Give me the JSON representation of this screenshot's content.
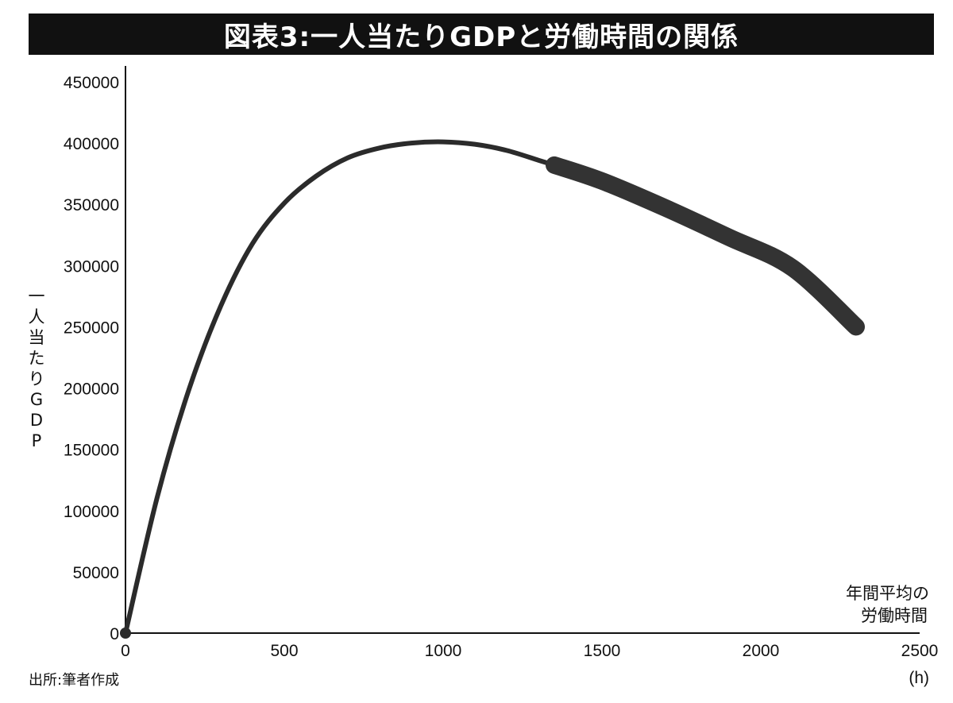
{
  "title": "図表3:一人当たりGDPと労働時間の関係",
  "source": "出所:筆者作成",
  "chart_data": {
    "type": "line",
    "title": "図表3:一人当たりGDPと労働時間の関係",
    "ylabel": "一人当たりGDP",
    "xlabel_lines": [
      "年間平均の",
      "労働時間"
    ],
    "x_unit": "(h)",
    "xlim": [
      0,
      2500
    ],
    "ylim": [
      0,
      450000
    ],
    "x_ticks": [
      0,
      500,
      1000,
      1500,
      2000,
      2500
    ],
    "y_ticks": [
      0,
      50000,
      100000,
      150000,
      200000,
      250000,
      300000,
      350000,
      400000,
      450000
    ],
    "x_tick_labels": [
      "0",
      "500",
      "1000",
      "1500",
      "2000",
      "2500"
    ],
    "y_tick_labels": [
      "0",
      "50000",
      "100000",
      "150000",
      "200000",
      "250000",
      "300000",
      "350000",
      "400000",
      "450000"
    ],
    "grid": false,
    "series": [
      {
        "x": [
          0,
          100,
          200,
          300,
          400,
          500,
          600,
          700,
          800,
          900,
          1000,
          1100,
          1200,
          1300,
          1350
        ],
        "values": [
          0,
          111000,
          199000,
          267000,
          318000,
          351000,
          373000,
          388000,
          396000,
          400000,
          401000,
          399000,
          394000,
          386000,
          382000
        ],
        "color": "#2b2b2b",
        "style": "thin"
      },
      {
        "x": [
          1350,
          1500,
          1700,
          1900,
          2100,
          2300
        ],
        "values": [
          382000,
          369000,
          347000,
          323000,
          298000,
          250000
        ],
        "color": "#333333",
        "style": "thick"
      }
    ]
  }
}
